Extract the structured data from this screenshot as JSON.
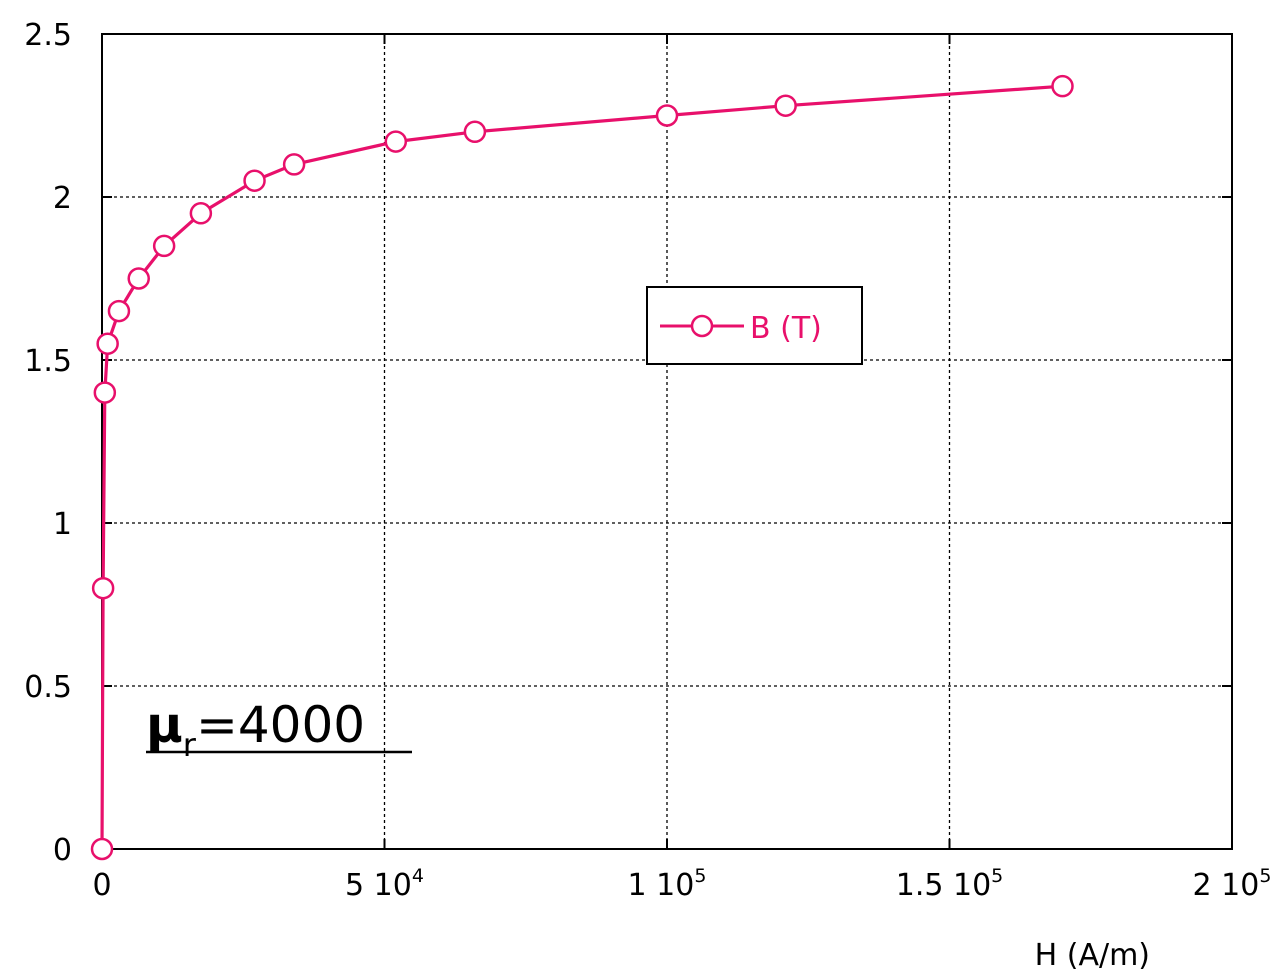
{
  "chart_data": {
    "type": "line",
    "xlabel": "H (A/m)",
    "ylabel": "",
    "xlim": [
      0,
      200000
    ],
    "ylim": [
      0,
      2.5
    ],
    "grid": true,
    "legend_position": "center-right",
    "x_ticks": [
      {
        "mantissa": "0",
        "exp": ""
      },
      {
        "mantissa": "5 10",
        "exp": "4"
      },
      {
        "mantissa": "1 10",
        "exp": "5"
      },
      {
        "mantissa": "1.5 10",
        "exp": "5"
      },
      {
        "mantissa": "2 10",
        "exp": "5"
      }
    ],
    "y_ticks": [
      "0",
      "0.5",
      "1",
      "1.5",
      "2",
      "2.5"
    ],
    "series": [
      {
        "name": "B (T)",
        "color": "#e8106b",
        "x": [
          0,
          200,
          500,
          1000,
          3000,
          6500,
          11000,
          17500,
          27000,
          34000,
          52000,
          66000,
          100000,
          121000,
          170000
        ],
        "y": [
          0,
          0.8,
          1.4,
          1.55,
          1.65,
          1.75,
          1.85,
          1.95,
          2.05,
          2.1,
          2.17,
          2.2,
          2.25,
          2.28,
          2.34
        ]
      }
    ],
    "annotations": [
      {
        "text": "μ",
        "subscript": "r",
        "suffix": "=4000"
      }
    ]
  }
}
